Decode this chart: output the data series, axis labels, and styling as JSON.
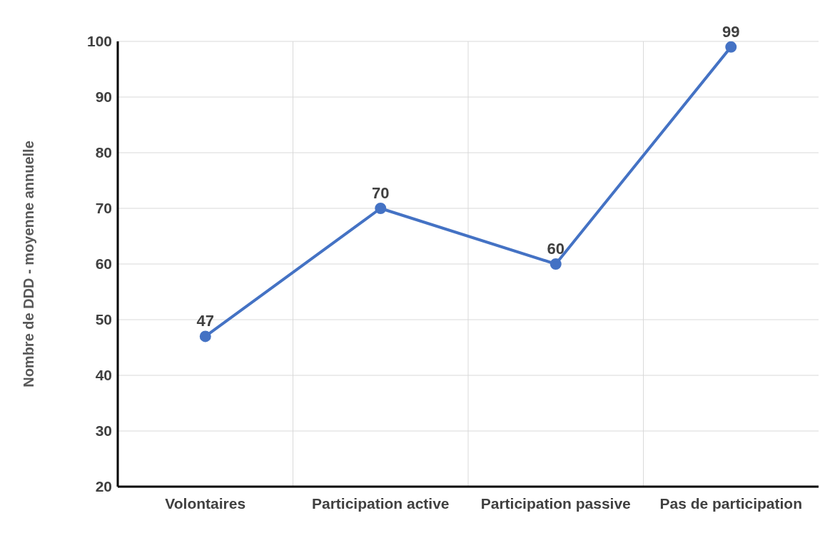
{
  "chart_data": {
    "type": "line",
    "categories": [
      "Volontaires",
      "Participation active",
      "Participation passive",
      "Pas de participation"
    ],
    "values": [
      47,
      70,
      60,
      99
    ],
    "color": "#4472c4",
    "ylabel": "Nombre de DDD - moyenne annuelle",
    "ylim": [
      20,
      100
    ],
    "yticks": [
      20,
      30,
      40,
      50,
      60,
      70,
      80,
      90,
      100
    ],
    "grid": true,
    "data_labels": true,
    "marker": "circle"
  }
}
